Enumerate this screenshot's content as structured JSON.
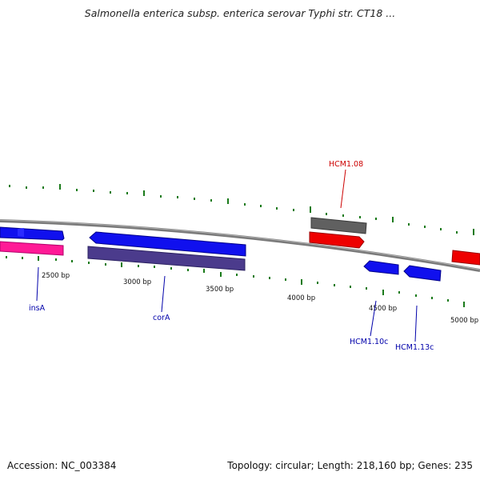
{
  "title": "Salmonella enterica subsp. enterica serovar Typhi str. CT18 ...",
  "footer": {
    "accession": "Accession: NC_003384",
    "summary": "Topology: circular; Length: 218,160 bp; Genes: 235"
  },
  "scale_labels": [
    "2500 bp",
    "3000 bp",
    "3500 bp",
    "4000 bp",
    "4500 bp",
    "5000 bp"
  ],
  "gene_labels": [
    {
      "text": "HCM1.08",
      "color": "#cc0000"
    },
    {
      "text": "insA",
      "color": "#0000aa"
    },
    {
      "text": "corA",
      "color": "#0000aa"
    },
    {
      "text": "HCM1.10c",
      "color": "#0000aa"
    },
    {
      "text": "HCM1.13c",
      "color": "#0000aa"
    }
  ],
  "colors": {
    "backbone": "#777777",
    "forward_strand": "#0000ee",
    "reverse_strand": "#ee0000",
    "tick": "#1a7a1a",
    "gene_grey": "#666666",
    "gene_pink": "#ff1493",
    "gene_purple": "#4a3a8a"
  }
}
